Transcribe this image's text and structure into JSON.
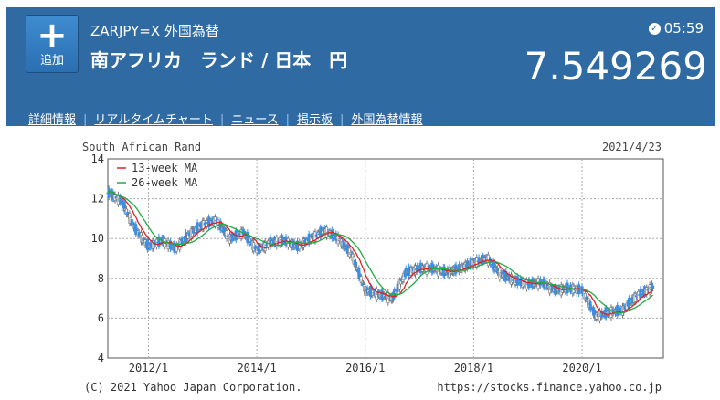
{
  "header": {
    "add_button": {
      "icon": "plus-icon",
      "label": "追加"
    },
    "symbol": "ZARJPY=X  外国為替",
    "pair_name": "南アフリカ　ランド / 日本　円",
    "time": "05:59",
    "time_icon": "clock-check-icon",
    "price": "7.549269"
  },
  "nav": {
    "items": [
      {
        "label": "詳細情報"
      },
      {
        "label": "リアルタイムチャート"
      },
      {
        "label": "ニュース"
      },
      {
        "label": "掲示板"
      },
      {
        "label": "外国為替情報"
      }
    ]
  },
  "footer": {
    "copyright": "(C) 2021 Yahoo Japan Corporation.",
    "url": "https://stocks.finance.yahoo.co.jp"
  },
  "chart_data": {
    "type": "candlestick",
    "title": "South African Rand",
    "date": "2021/4/23",
    "ylim": [
      4,
      14
    ],
    "yticks": [
      "4",
      "6",
      "8",
      "10",
      "12",
      "14"
    ],
    "xticks": [
      "2012/1",
      "2014/1",
      "2016/1",
      "2018/1",
      "2020/1"
    ],
    "grid": true,
    "legend_position": "top-left",
    "colors": {
      "up": "#3a8ee6",
      "down": "#777777",
      "ma13": "#dd2222",
      "ma26": "#22aa44"
    },
    "series": [
      {
        "name": "13-week MA",
        "color": "#dd2222"
      },
      {
        "name": "26-week MA",
        "color": "#22aa44"
      }
    ],
    "x": [
      2011.25,
      2011.5,
      2011.75,
      2012.0,
      2012.25,
      2012.5,
      2012.75,
      2013.0,
      2013.25,
      2013.5,
      2013.75,
      2014.0,
      2014.25,
      2014.5,
      2014.75,
      2015.0,
      2015.25,
      2015.5,
      2015.75,
      2016.0,
      2016.25,
      2016.5,
      2016.75,
      2017.0,
      2017.25,
      2017.5,
      2017.75,
      2018.0,
      2018.25,
      2018.5,
      2018.75,
      2019.0,
      2019.25,
      2019.5,
      2019.75,
      2020.0,
      2020.25,
      2020.5,
      2020.75,
      2021.0,
      2021.3
    ],
    "values": [
      12.3,
      11.9,
      10.5,
      9.6,
      9.9,
      9.5,
      10.2,
      10.7,
      10.9,
      10.0,
      10.3,
      9.4,
      9.8,
      9.9,
      9.6,
      10.0,
      10.4,
      10.0,
      9.2,
      7.4,
      7.2,
      7.0,
      8.3,
      8.5,
      8.5,
      8.3,
      8.5,
      8.8,
      9.0,
      8.2,
      7.9,
      7.7,
      7.8,
      7.4,
      7.5,
      7.4,
      6.1,
      6.3,
      6.4,
      7.1,
      7.55
    ]
  }
}
